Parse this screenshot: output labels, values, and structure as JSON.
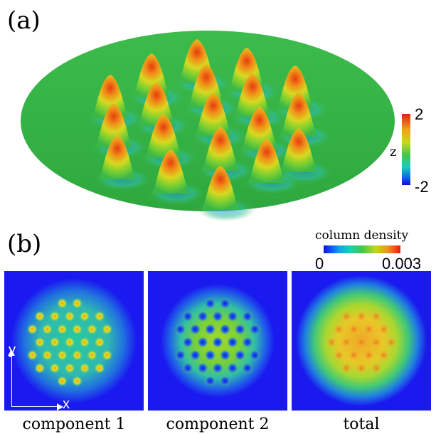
{
  "panel_a": {
    "label": "(a)",
    "colorbar": {
      "max": "2",
      "min": "-2",
      "axis_label": "z"
    }
  },
  "panel_b": {
    "label": "(b)",
    "colorbar": {
      "title": "column density",
      "min": "0",
      "max": "0.003"
    },
    "axes": {
      "x": "x",
      "y": "y"
    },
    "components": [
      {
        "caption": "component 1"
      },
      {
        "caption": "component 2"
      },
      {
        "caption": "total"
      }
    ]
  },
  "colors": {
    "background_blue": "#1a1af0",
    "surface_green": "#36b84a",
    "peak_red": "#e04414"
  }
}
